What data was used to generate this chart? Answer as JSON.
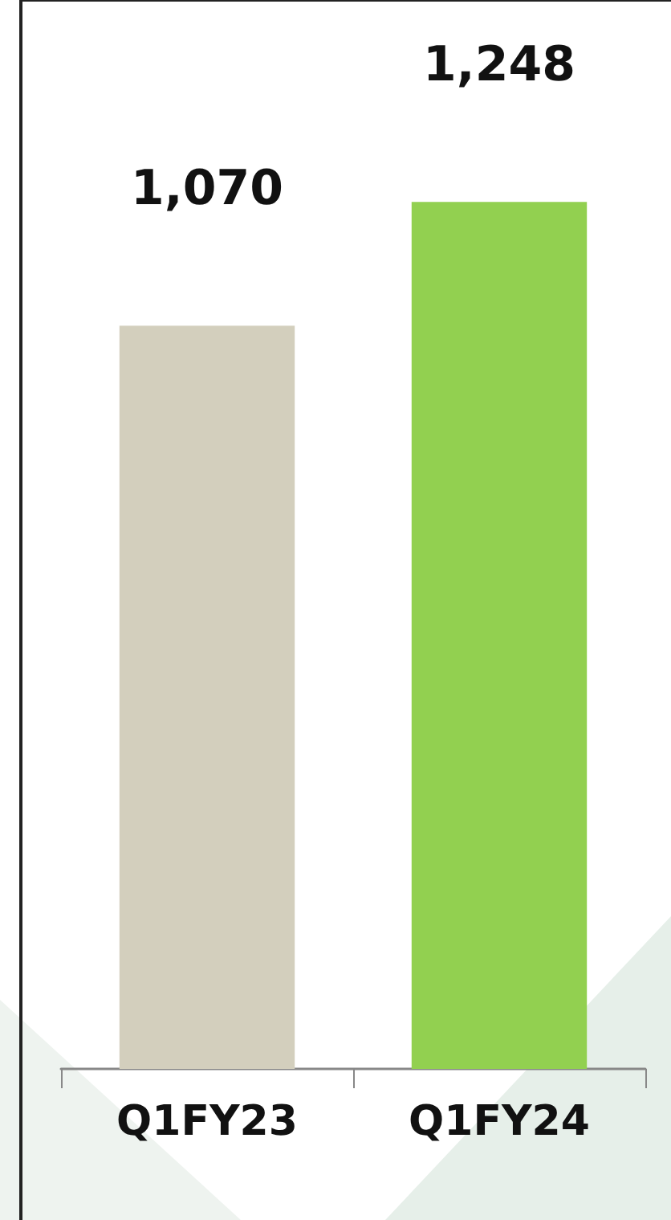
{
  "chart_data": {
    "type": "bar",
    "categories": [
      "Q1FY23",
      "Q1FY24"
    ],
    "values": [
      1070,
      1248
    ],
    "colors": [
      "#d3cfbd",
      "#92d050"
    ],
    "value_labels": [
      "1,070",
      "1,248"
    ]
  }
}
